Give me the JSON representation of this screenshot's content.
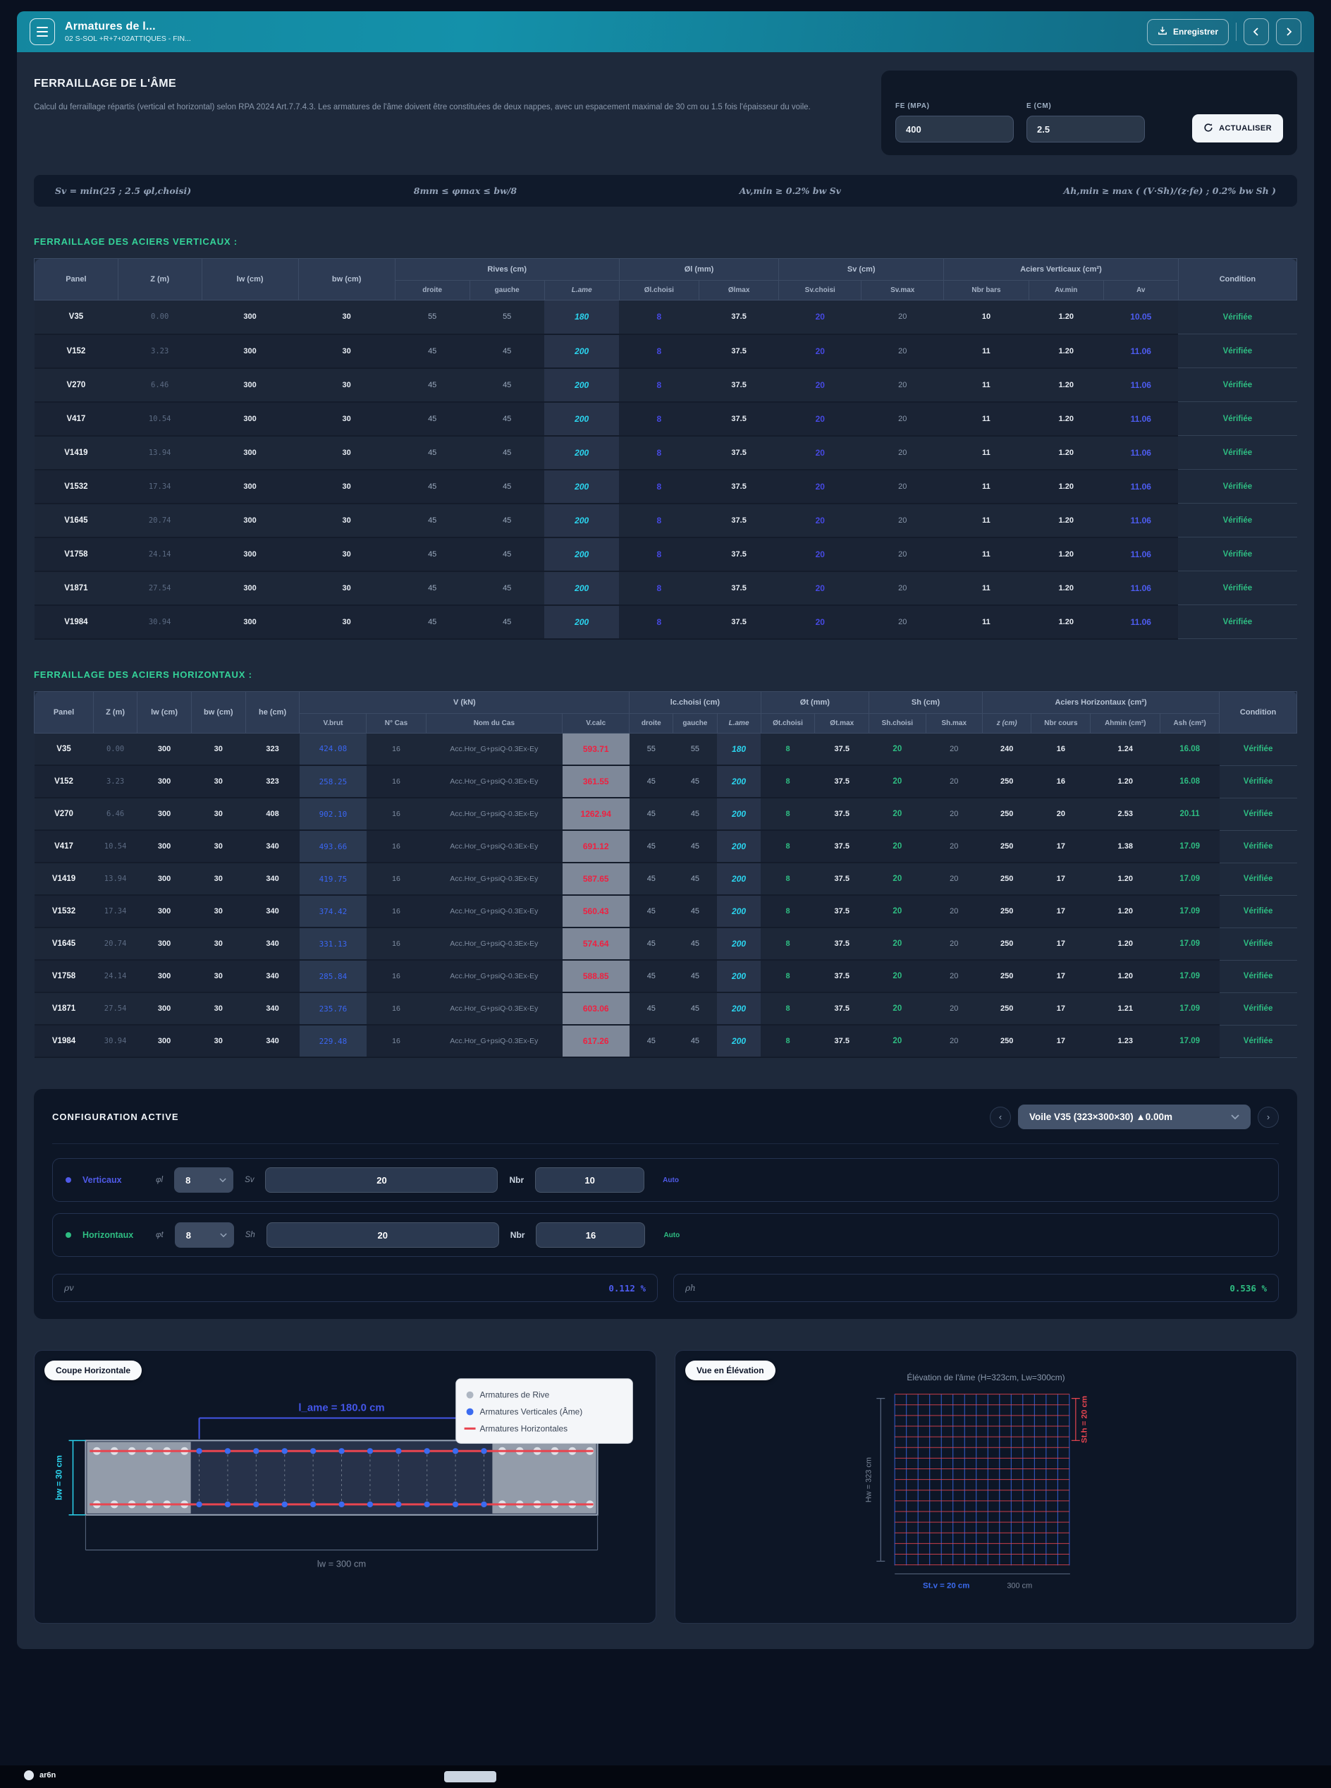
{
  "header": {
    "title": "Armatures de l...",
    "subtitle": "02 S-SOL +R+7+02ATTIQUES - FIN...",
    "save_label": "Enregistrer",
    "prev_label": "‹",
    "next_label": "›"
  },
  "intro": {
    "title": "FERRAILLAGE DE L'ÂME",
    "description": "Calcul du ferraillage répartis (vertical et horizontal) selon RPA 2024 Art.7.7.4.3. Les armatures de l'âme doivent être constituées de deux nappes, avec un espacement maximal de 30 cm ou 1.5 fois l'épaisseur du voile.",
    "fe_label": "FE (MPA)",
    "fe_value": "400",
    "e_label": "E (CM)",
    "e_value": "2.5",
    "refresh_label": "ACTUALISER"
  },
  "formulas": [
    "Sv = min(25 ; 2.5 φl,choisi)",
    "8mm ≤ φmax ≤ bw/8",
    "Av,min ≥ 0.2% bw Sv",
    "Ah,min ≥ max ( (V·Sh)/(z·fe) ; 0.2% bw Sh )"
  ],
  "vertical_table": {
    "heading": "FERRAILLAGE DES ACIERS VERTICAUX :",
    "col_panel": "Panel",
    "col_z": "Z (m)",
    "col_lw": "lw (cm)",
    "col_bw": "bw (cm)",
    "grp_rives": "Rives (cm)",
    "grp_ol": "Øl (mm)",
    "grp_sv": "Sv (cm)",
    "grp_av": "Aciers Verticaux (cm²)",
    "sub": [
      "droite",
      "gauche",
      "L.ame",
      "Øl.choisi",
      "Ølmax",
      "Sv.choisi",
      "Sv.max",
      "Nbr bars",
      "Av.min",
      "Av"
    ],
    "col_condition": "Condition",
    "rows": [
      [
        "V35",
        "0.00",
        "300",
        "30",
        "55",
        "55",
        "180",
        "8",
        "37.5",
        "20",
        "20",
        "10",
        "1.20",
        "10.05",
        "Vérifiée"
      ],
      [
        "V152",
        "3.23",
        "300",
        "30",
        "45",
        "45",
        "200",
        "8",
        "37.5",
        "20",
        "20",
        "11",
        "1.20",
        "11.06",
        "Vérifiée"
      ],
      [
        "V270",
        "6.46",
        "300",
        "30",
        "45",
        "45",
        "200",
        "8",
        "37.5",
        "20",
        "20",
        "11",
        "1.20",
        "11.06",
        "Vérifiée"
      ],
      [
        "V417",
        "10.54",
        "300",
        "30",
        "45",
        "45",
        "200",
        "8",
        "37.5",
        "20",
        "20",
        "11",
        "1.20",
        "11.06",
        "Vérifiée"
      ],
      [
        "V1419",
        "13.94",
        "300",
        "30",
        "45",
        "45",
        "200",
        "8",
        "37.5",
        "20",
        "20",
        "11",
        "1.20",
        "11.06",
        "Vérifiée"
      ],
      [
        "V1532",
        "17.34",
        "300",
        "30",
        "45",
        "45",
        "200",
        "8",
        "37.5",
        "20",
        "20",
        "11",
        "1.20",
        "11.06",
        "Vérifiée"
      ],
      [
        "V1645",
        "20.74",
        "300",
        "30",
        "45",
        "45",
        "200",
        "8",
        "37.5",
        "20",
        "20",
        "11",
        "1.20",
        "11.06",
        "Vérifiée"
      ],
      [
        "V1758",
        "24.14",
        "300",
        "30",
        "45",
        "45",
        "200",
        "8",
        "37.5",
        "20",
        "20",
        "11",
        "1.20",
        "11.06",
        "Vérifiée"
      ],
      [
        "V1871",
        "27.54",
        "300",
        "30",
        "45",
        "45",
        "200",
        "8",
        "37.5",
        "20",
        "20",
        "11",
        "1.20",
        "11.06",
        "Vérifiée"
      ],
      [
        "V1984",
        "30.94",
        "300",
        "30",
        "45",
        "45",
        "200",
        "8",
        "37.5",
        "20",
        "20",
        "11",
        "1.20",
        "11.06",
        "Vérifiée"
      ]
    ]
  },
  "horizontal_table": {
    "heading": "FERRAILLAGE DES ACIERS HORIZONTAUX :",
    "col_panel": "Panel",
    "col_z": "Z (m)",
    "col_lw": "lw (cm)",
    "col_bw": "bw (cm)",
    "col_he": "he (cm)",
    "grp_v": "V (kN)",
    "grp_lc": "lc.choisi (cm)",
    "grp_ot": "Øt (mm)",
    "grp_sh": "Sh (cm)",
    "grp_ah": "Aciers Horizontaux (cm²)",
    "sub": [
      "V.brut",
      "N° Cas",
      "Nom du Cas",
      "V.calc",
      "droite",
      "gauche",
      "L.ame",
      "Øt.choisi",
      "Øt.max",
      "Sh.choisi",
      "Sh.max",
      "z (cm)",
      "Nbr cours",
      "Ahmin (cm²)",
      "Ash (cm²)"
    ],
    "col_condition": "Condition",
    "rows": [
      [
        "V35",
        "0.00",
        "300",
        "30",
        "323",
        "424.08",
        "16",
        "Acc.Hor_G+psiQ-0.3Ex-Ey",
        "593.71",
        "55",
        "55",
        "180",
        "8",
        "37.5",
        "20",
        "20",
        "240",
        "16",
        "1.24",
        "16.08",
        "Vérifiée"
      ],
      [
        "V152",
        "3.23",
        "300",
        "30",
        "323",
        "258.25",
        "16",
        "Acc.Hor_G+psiQ-0.3Ex-Ey",
        "361.55",
        "45",
        "45",
        "200",
        "8",
        "37.5",
        "20",
        "20",
        "250",
        "16",
        "1.20",
        "16.08",
        "Vérifiée"
      ],
      [
        "V270",
        "6.46",
        "300",
        "30",
        "408",
        "902.10",
        "16",
        "Acc.Hor_G+psiQ-0.3Ex-Ey",
        "1262.94",
        "45",
        "45",
        "200",
        "8",
        "37.5",
        "20",
        "20",
        "250",
        "20",
        "2.53",
        "20.11",
        "Vérifiée"
      ],
      [
        "V417",
        "10.54",
        "300",
        "30",
        "340",
        "493.66",
        "16",
        "Acc.Hor_G+psiQ-0.3Ex-Ey",
        "691.12",
        "45",
        "45",
        "200",
        "8",
        "37.5",
        "20",
        "20",
        "250",
        "17",
        "1.38",
        "17.09",
        "Vérifiée"
      ],
      [
        "V1419",
        "13.94",
        "300",
        "30",
        "340",
        "419.75",
        "16",
        "Acc.Hor_G+psiQ-0.3Ex-Ey",
        "587.65",
        "45",
        "45",
        "200",
        "8",
        "37.5",
        "20",
        "20",
        "250",
        "17",
        "1.20",
        "17.09",
        "Vérifiée"
      ],
      [
        "V1532",
        "17.34",
        "300",
        "30",
        "340",
        "374.42",
        "16",
        "Acc.Hor_G+psiQ-0.3Ex-Ey",
        "560.43",
        "45",
        "45",
        "200",
        "8",
        "37.5",
        "20",
        "20",
        "250",
        "17",
        "1.20",
        "17.09",
        "Vérifiée"
      ],
      [
        "V1645",
        "20.74",
        "300",
        "30",
        "340",
        "331.13",
        "16",
        "Acc.Hor_G+psiQ-0.3Ex-Ey",
        "574.64",
        "45",
        "45",
        "200",
        "8",
        "37.5",
        "20",
        "20",
        "250",
        "17",
        "1.20",
        "17.09",
        "Vérifiée"
      ],
      [
        "V1758",
        "24.14",
        "300",
        "30",
        "340",
        "285.84",
        "16",
        "Acc.Hor_G+psiQ-0.3Ex-Ey",
        "588.85",
        "45",
        "45",
        "200",
        "8",
        "37.5",
        "20",
        "20",
        "250",
        "17",
        "1.20",
        "17.09",
        "Vérifiée"
      ],
      [
        "V1871",
        "27.54",
        "300",
        "30",
        "340",
        "235.76",
        "16",
        "Acc.Hor_G+psiQ-0.3Ex-Ey",
        "603.06",
        "45",
        "45",
        "200",
        "8",
        "37.5",
        "20",
        "20",
        "250",
        "17",
        "1.21",
        "17.09",
        "Vérifiée"
      ],
      [
        "V1984",
        "30.94",
        "300",
        "30",
        "340",
        "229.48",
        "16",
        "Acc.Hor_G+psiQ-0.3Ex-Ey",
        "617.26",
        "45",
        "45",
        "200",
        "8",
        "37.5",
        "20",
        "20",
        "250",
        "17",
        "1.23",
        "17.09",
        "Vérifiée"
      ]
    ]
  },
  "config": {
    "title": "CONFIGURATION ACTIVE",
    "selector_value": "Voile V35 (323×300×30) ▲0.00m",
    "vertical": {
      "label": "Verticaux",
      "phi_label": "φl",
      "phi_value": "8",
      "s_label": "Sv",
      "s_value": "20",
      "nbr_label": "Nbr",
      "nbr_value": "10",
      "auto_label": "Auto"
    },
    "horizontal": {
      "label": "Horizontaux",
      "phi_label": "φt",
      "phi_value": "8",
      "s_label": "Sh",
      "s_value": "20",
      "nbr_label": "Nbr",
      "nbr_value": "16",
      "auto_label": "Auto"
    },
    "rho_v": {
      "label": "ρv",
      "value": "0.112 %"
    },
    "rho_h": {
      "label": "ρh",
      "value": "0.536 %"
    }
  },
  "coupe": {
    "pill": "Coupe Horizontale",
    "dim_lame": "l_ame = 180.0 cm",
    "dim_bw": "bw = 30 cm",
    "dim_lw": "lw = 300 cm",
    "legend": [
      "Armatures de Rive",
      "Armatures Verticales (Âme)",
      "Armatures Horizontales"
    ]
  },
  "elevation": {
    "pill": "Vue en Élévation",
    "title": "Élévation de l'âme (H=323cm, Lw=300cm)",
    "dim_h": "Hw = 323 cm",
    "dim_sth": "St.h = 20 cm",
    "dim_stv": "St.v = 20 cm",
    "dim_lw": "300 cm"
  },
  "footer": {
    "brand": "ar6n"
  },
  "colors": {
    "accent_teal": "#1491aa",
    "green": "#2ebd82",
    "indigo": "#4649e2",
    "cyan": "#2bd5ef",
    "red": "#ef2040",
    "blue": "#3a66f2"
  }
}
